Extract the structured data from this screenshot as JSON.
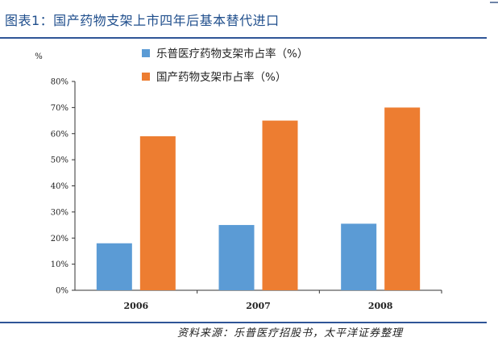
{
  "title": "图表1：国产药物支架上市四年后基本替代进口",
  "source": "资料来源：乐普医疗招股书，太平洋证券整理",
  "chart_data": {
    "type": "bar",
    "categories": [
      "2006",
      "2007",
      "2008"
    ],
    "series": [
      {
        "name": "乐普医疗药物支架市占率（%）",
        "color": "#5b9bd5",
        "values": [
          18,
          25,
          25.5
        ]
      },
      {
        "name": "国产药物支架市占率（%）",
        "color": "#ed7d31",
        "values": [
          59,
          65,
          70
        ]
      }
    ],
    "ylim": [
      0,
      80
    ],
    "yticks": [
      "0%",
      "10%",
      "20%",
      "30%",
      "40%",
      "50%",
      "60%",
      "70%",
      "80%"
    ],
    "ylabel": "%",
    "xlabel": "",
    "legend": "top"
  }
}
